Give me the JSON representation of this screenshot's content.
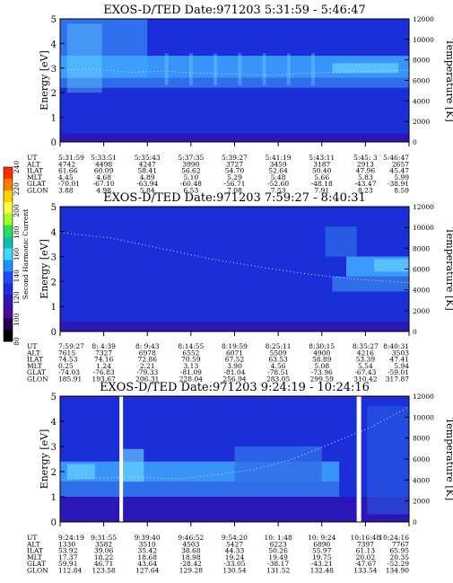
{
  "colors": {
    "background": "#1a2fd9",
    "deep": "#2b17b8",
    "mid": "#2f6ee8",
    "high": "#3fa6ff",
    "cyan": "#6fe0ff",
    "gap": "#ffffff"
  },
  "colorbar": {
    "label": "Second Harmonic Current",
    "ticks": [
      "240",
      "220",
      "200",
      "180",
      "160",
      "140",
      "120",
      "100",
      "80"
    ],
    "colors": [
      "#ff2b00",
      "#ff7a00",
      "#ffcf00",
      "#ffff40",
      "#9cff2a",
      "#28e05a",
      "#10c0a8",
      "#40d8ff",
      "#1e90ff",
      "#1e4cff",
      "#1a2fd9",
      "#2b17b8",
      "#4a0aa0",
      "#250050",
      "#000000"
    ]
  },
  "chart_data": [
    {
      "type": "heatmap",
      "title": "EXOS-D/TED   Date:971203  5:31:59 - 5:46:47",
      "ylabel": "Energy [eV]",
      "ylabel_right": "Temperature [K]",
      "ylim": [
        0,
        5
      ],
      "ylim_right": [
        0,
        12000
      ],
      "y_ticks": [
        "0",
        "1",
        "2",
        "3",
        "4",
        "5"
      ],
      "y_ticks_right": [
        "0",
        "2000",
        "4000",
        "6000",
        "8000",
        "10000",
        "12000"
      ],
      "ephemeris": {
        "labels": [
          "UT",
          "ALT",
          "ILAT",
          "MLT",
          "GLAT",
          "GLON"
        ],
        "columns": [
          [
            "5:31:59",
            "4742",
            "61.66",
            "4.45",
            "-70.01",
            "3.88"
          ],
          [
            "5:33:51",
            "4498",
            "60.09",
            "4.68",
            "-67.10",
            "4.98"
          ],
          [
            "5:35:43",
            "4247",
            "58.41",
            "4.89",
            "-63.94",
            "5.84"
          ],
          [
            "5:37:35",
            "3990",
            "56.62",
            "5.10",
            "-60.48",
            "6.53"
          ],
          [
            "5:39:27",
            "3727",
            "54.70",
            "5.29",
            "-56.71",
            "7.08"
          ],
          [
            "5:41:19",
            "3459",
            "52.64",
            "5.48",
            "-52.60",
            "7.53"
          ],
          [
            "5:43:11",
            "3187",
            "50.40",
            "5.66",
            "-48.18",
            "7.91"
          ],
          [
            "5:45: 3",
            "2913",
            "47.96",
            "5.83",
            "-43.47",
            "8.23"
          ],
          [
            "5:46:47",
            "2657",
            "45.47",
            "5.99",
            "-38.91",
            "8.59"
          ]
        ]
      },
      "temperature_trace": [
        7000,
        7100,
        6800,
        6900,
        6700,
        6600,
        6500,
        6700,
        6800,
        6900,
        7000
      ]
    },
    {
      "type": "heatmap",
      "title": "EXOS-D/TED   Date:971203  7:59:27 - 8:40:31",
      "ylabel": "Energy [eV]",
      "ylabel_right": "Temperature [K]",
      "ylim": [
        0,
        5
      ],
      "ylim_right": [
        0,
        12000
      ],
      "y_ticks": [
        "0",
        "1",
        "2",
        "3",
        "4",
        "5"
      ],
      "y_ticks_right": [
        "0",
        "2000",
        "4000",
        "6000",
        "8000",
        "10000",
        "12000"
      ],
      "ephemeris": {
        "labels": [
          "UT",
          "ALT",
          "ILAT",
          "MLT",
          "GLAT",
          "GLON"
        ],
        "columns": [
          [
            "7:59:27",
            "7615",
            "74.53",
            "0.25",
            "-74.03",
            "185.91"
          ],
          [
            "8: 4:39",
            "7327",
            "74.16",
            "1.24",
            "-76.83",
            "193.67"
          ],
          [
            "8: 9:43",
            "6978",
            "72.86",
            "2.21",
            "-79.33",
            "206.31"
          ],
          [
            "8:14:55",
            "6552",
            "70.59",
            "3.13",
            "-81.09",
            "228.04"
          ],
          [
            "8:19:59",
            "6071",
            "67.52",
            "3.90",
            "-81.04",
            "256.94"
          ],
          [
            "8:25:11",
            "5509",
            "63.53",
            "4.56",
            "-78.51",
            "283.05"
          ],
          [
            "8:30:15",
            "4900",
            "58.89",
            "5.08",
            "-73.96",
            "299.59"
          ],
          [
            "8:35:27",
            "4216",
            "53.39",
            "5.54",
            "-67.43",
            "310.42"
          ],
          [
            "8:40:31",
            "3503",
            "47.41",
            "5.94",
            "-59.01",
            "317.87"
          ]
        ]
      },
      "temperature_trace": [
        9500,
        9000,
        8000,
        7000,
        6200,
        5500,
        5000,
        4700
      ]
    },
    {
      "type": "heatmap",
      "title": "EXOS-D/TED   Date:971203  9:24:19 - 10:24:16",
      "ylabel": "Energy [eV]",
      "ylabel_right": "Temperature [K]",
      "ylim": [
        0,
        5
      ],
      "ylim_right": [
        0,
        12000
      ],
      "y_ticks": [
        "0",
        "1",
        "2",
        "3",
        "4",
        "5"
      ],
      "y_ticks_right": [
        "0",
        "2000",
        "4000",
        "6000",
        "8000",
        "10000",
        "12000"
      ],
      "ephemeris": {
        "labels": [
          "UT",
          "ALT",
          "ILAT",
          "MLT",
          "GLAT",
          "GLON"
        ],
        "columns": [
          [
            "9:24:19",
            "1330",
            "53.92",
            "17.37",
            "59.91",
            "112.84"
          ],
          [
            "9:31:55",
            "3582",
            "39.06",
            "18.22",
            "46.71",
            "123.58"
          ],
          [
            "9:39:40",
            "3510",
            "35.42",
            "18.68",
            "43.64",
            "127.64"
          ],
          [
            "9:46:52",
            "4503",
            "38.68",
            "18.98",
            "-28.42",
            "129.28"
          ],
          [
            "9:54:20",
            "5427",
            "44.33",
            "19.24",
            "-33.05",
            "130.54"
          ],
          [
            "10: 1:48",
            "6223",
            "50.26",
            "19.49",
            "-38.17",
            "131.52"
          ],
          [
            "10: 9:24",
            "6890",
            "55.97",
            "19.75",
            "-43.21",
            "132.48"
          ],
          [
            "10:16:48",
            "7397",
            "61.13",
            "20.02",
            "-47.67",
            "133.54"
          ],
          [
            "10:24:16",
            "7767",
            "65.95",
            "20.35",
            "-52.29",
            "134.90"
          ]
        ]
      },
      "temperature_trace": [
        4000,
        4200,
        4300,
        4100,
        4500,
        5000,
        6000,
        7500,
        9000,
        11000
      ]
    }
  ]
}
